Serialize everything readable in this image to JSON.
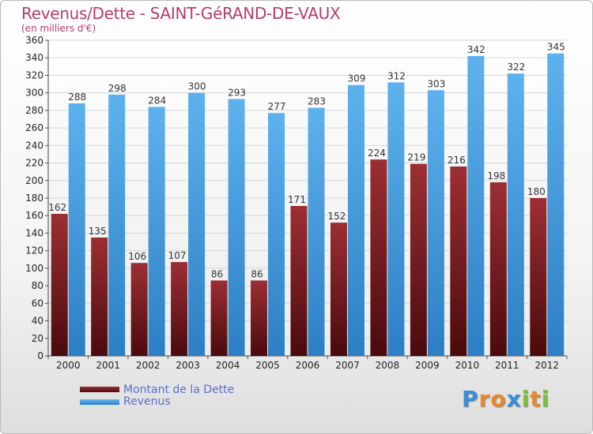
{
  "header": {
    "title": "Revenus/Dette - SAINT-GéRAND-DE-VAUX",
    "subtitle": "(en milliers d'€)"
  },
  "chart_data": {
    "type": "bar",
    "categories": [
      "2000",
      "2001",
      "2002",
      "2003",
      "2004",
      "2005",
      "2006",
      "2007",
      "2008",
      "2009",
      "2010",
      "2011",
      "2012"
    ],
    "series": [
      {
        "name": "Montant de la Dette",
        "values": [
          162,
          135,
          106,
          107,
          86,
          86,
          171,
          152,
          224,
          219,
          216,
          198,
          180
        ],
        "color": "#7a1e22"
      },
      {
        "name": "Revenus",
        "values": [
          288,
          298,
          284,
          300,
          293,
          277,
          283,
          309,
          312,
          303,
          342,
          322,
          345
        ],
        "color": "#4aa3e6"
      }
    ],
    "ylim": [
      0,
      360
    ],
    "ystep": 20,
    "grid": true,
    "legend": "bottom-left"
  },
  "legend": {
    "debt_label": "Montant de la Dette",
    "revenue_label": "Revenus"
  },
  "logo": {
    "letters": [
      "P",
      "r",
      "o",
      "x",
      "i",
      "t",
      "i"
    ],
    "colors": [
      "#3a8fd8",
      "#e8892a",
      "#e8892a",
      "#3a8fd8",
      "#7bbf3a",
      "#e8892a",
      "#7bbf3a"
    ]
  }
}
